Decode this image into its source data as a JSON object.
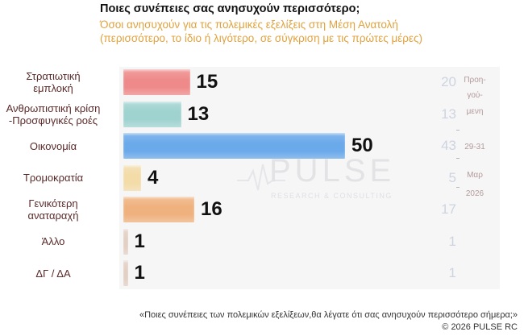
{
  "header": {
    "title": "Ποιες συνέπειες σας ανησυχούν περισσότερο;",
    "subtitle_line1": "Όσοι ανησυχούν για τις πολεμικές εξελίξεις στη Μέση Ανατολή",
    "subtitle_line2": "(περισσότερο, το ίδιο ή λιγότερο, σε σύγκριση με τις πρώτες μέρες)"
  },
  "watermark": {
    "main": "PULSE",
    "sub": "RESEARCH & CONSULTING"
  },
  "previous_note": [
    "Προη-",
    "γού-",
    "μενη",
    "29-31",
    "Μαρ",
    "2026"
  ],
  "footer": {
    "question": "«Ποιες συνέπειες των πολεμικών εξελίξεων,θα λέγατε ότι σας ανησυχούν περισσότερο σήμερα;»",
    "copyright": "©  2026  PULSE RC"
  },
  "chart_data": {
    "type": "bar",
    "orientation": "horizontal",
    "categories": [
      [
        "Στρατιωτική",
        "εμπλοκή"
      ],
      [
        "Ανθρωπιστική κρίση",
        "-Προσφυγικές ροές"
      ],
      [
        "Οικονομία"
      ],
      [
        "Τρομοκρατία"
      ],
      [
        "Γενικότερη",
        "αναταραχή"
      ],
      [
        "Άλλο"
      ],
      [
        "ΔΓ / ΔΑ"
      ]
    ],
    "values": [
      15,
      13,
      50,
      4,
      16,
      1,
      1
    ],
    "previous_values": [
      20,
      13,
      43,
      5,
      17,
      1,
      1
    ],
    "colors": [
      "#ef8a8a",
      "#9fd3d0",
      "#6aa9ea",
      "#f3dca8",
      "#efb27e",
      "#e3cfc3",
      "#e3cfc3"
    ],
    "xlim": [
      0,
      50
    ]
  }
}
